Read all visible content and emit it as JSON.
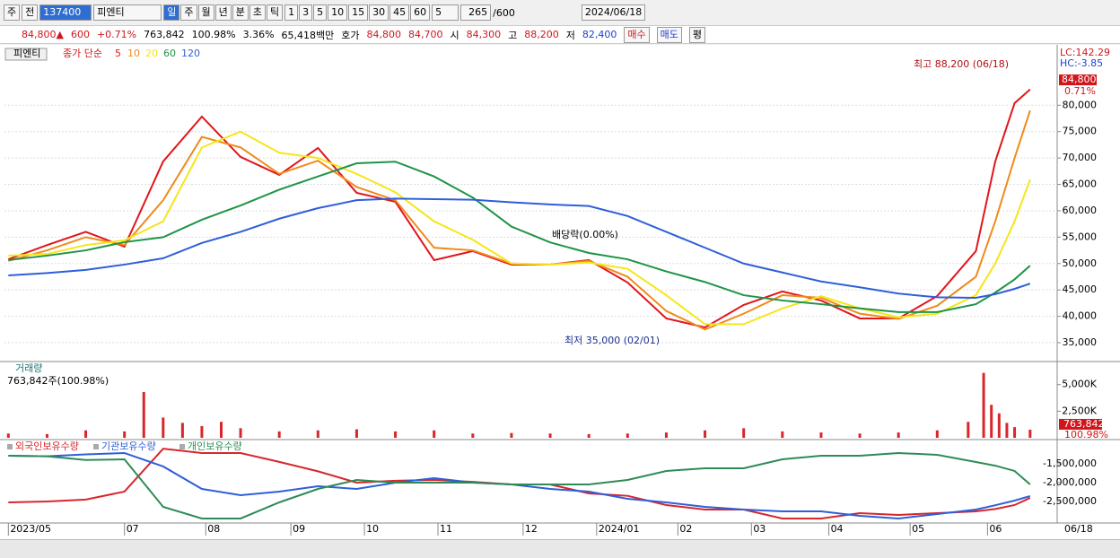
{
  "toolbar": {
    "market": "주",
    "prev": "전",
    "code": "137400",
    "name": "피엔티",
    "periods": [
      "일",
      "주",
      "월",
      "년",
      "분",
      "초",
      "틱"
    ],
    "intervals": [
      "1",
      "3",
      "5",
      "10",
      "15",
      "30",
      "45",
      "60"
    ],
    "interval_select": "5",
    "count": "265",
    "count_max": "/600",
    "date": "2024/06/18"
  },
  "quote": {
    "price": "84,800",
    "arrow": "▲",
    "change": "600",
    "change_pct": "+0.71%",
    "volume": "763,842",
    "volume_ratio": "100.98%",
    "turnover": "3.36%",
    "amount": "65,418백만",
    "ask_label": "호가",
    "ask": "84,800",
    "bid": "84,700",
    "open_label": "시",
    "open": "84,300",
    "high_label": "고",
    "high": "88,200",
    "low_label": "저",
    "low": "82,400",
    "buy": "매수",
    "sell": "매도",
    "eval": "평"
  },
  "chart_data": [
    {
      "type": "line",
      "legend_name": "피엔티",
      "legend_label": "종가 단순",
      "x": [
        0,
        10,
        20,
        30,
        40,
        50,
        60,
        70,
        80,
        90,
        100,
        110,
        120,
        130,
        140,
        150,
        160,
        170,
        180,
        190,
        200,
        210,
        220,
        230,
        240,
        250,
        255,
        260,
        264
      ],
      "series": [
        {
          "name": "5",
          "color": "#e0161c",
          "values": [
            50800,
            53500,
            56000,
            53200,
            69350,
            77850,
            70200,
            66800,
            71900,
            63400,
            61700,
            50650,
            52350,
            49800,
            49800,
            50650,
            46400,
            39600,
            37900,
            42150,
            44700,
            43000,
            39600,
            39600,
            43850,
            52350,
            69350,
            80400,
            83000
          ]
        },
        {
          "name": "10",
          "color": "#f08a1c",
          "values": [
            50500,
            52500,
            55000,
            53500,
            62000,
            74000,
            72000,
            67000,
            69500,
            64500,
            62000,
            53000,
            52500,
            50000,
            49800,
            50500,
            47500,
            41000,
            37500,
            40500,
            44000,
            43500,
            40500,
            39500,
            42000,
            47500,
            58000,
            70000,
            79000
          ]
        },
        {
          "name": "20",
          "color": "#f5e61a",
          "values": [
            51500,
            51800,
            53500,
            54400,
            58000,
            72000,
            75000,
            71000,
            70000,
            67000,
            63500,
            58000,
            54500,
            50000,
            49800,
            50200,
            49000,
            44000,
            38500,
            38500,
            41500,
            43800,
            41500,
            39800,
            40500,
            44000,
            50000,
            58000,
            65900
          ]
        },
        {
          "name": "60",
          "color": "#1e9446",
          "values": [
            50650,
            51500,
            52500,
            54050,
            55000,
            58300,
            61000,
            64000,
            66500,
            69000,
            69300,
            66500,
            62500,
            57000,
            54000,
            52000,
            50800,
            48500,
            46500,
            44000,
            43000,
            42300,
            41500,
            40800,
            40800,
            42300,
            44500,
            47000,
            49600
          ]
        },
        {
          "name": "120",
          "color": "#2f5fd8",
          "values": [
            47750,
            48200,
            48800,
            49800,
            51000,
            53900,
            56000,
            58500,
            60500,
            62000,
            62300,
            62200,
            62100,
            61600,
            61200,
            60900,
            59000,
            56000,
            53000,
            50000,
            48300,
            46600,
            45500,
            44300,
            43600,
            43500,
            44200,
            45200,
            46200
          ]
        }
      ],
      "xlim": [
        -1,
        271
      ],
      "ylim": [
        31600,
        91100
      ],
      "yticks": [
        {
          "value": 35000,
          "label": "35,000"
        },
        {
          "value": 40000,
          "label": "40,000"
        },
        {
          "value": 45000,
          "label": "45,000"
        },
        {
          "value": 50000,
          "label": "50,000"
        },
        {
          "value": 55000,
          "label": "55,000"
        },
        {
          "value": 60000,
          "label": "60,000"
        },
        {
          "value": 65000,
          "label": "65,000"
        },
        {
          "value": 70000,
          "label": "70,000"
        },
        {
          "value": 75000,
          "label": "75,000"
        },
        {
          "value": 80000,
          "label": "80,000"
        }
      ],
      "xticks": [
        {
          "value": 0,
          "label": "2023/05"
        },
        {
          "value": 30,
          "label": "07"
        },
        {
          "value": 51,
          "label": "08"
        },
        {
          "value": 73,
          "label": "09"
        },
        {
          "value": 92,
          "label": "10"
        },
        {
          "value": 111,
          "label": "11"
        },
        {
          "value": 133,
          "label": "12"
        },
        {
          "value": 152,
          "label": "2024/01"
        },
        {
          "value": 173,
          "label": "02"
        },
        {
          "value": 192,
          "label": "03"
        },
        {
          "value": 212,
          "label": "04"
        },
        {
          "value": 233,
          "label": "05"
        },
        {
          "value": 253,
          "label": "06"
        }
      ],
      "grid": true,
      "annotations": [
        "LC:142.29",
        "HC:-3.85",
        "최고 88,200 (06/18)",
        "최저 35,000 (02/01)",
        "배당락(0.00%)"
      ],
      "last_price": {
        "value": 84800,
        "label": "84,800"
      },
      "last_change": "0.71%",
      "end_label": "06/18"
    },
    {
      "type": "bar",
      "title": "거래량",
      "subtitle": "763,842주(100.98%)",
      "x": [
        0,
        10,
        20,
        30,
        35,
        40,
        45,
        50,
        55,
        60,
        70,
        80,
        90,
        100,
        110,
        120,
        130,
        140,
        150,
        160,
        170,
        180,
        190,
        200,
        210,
        220,
        230,
        240,
        248,
        252,
        254,
        256,
        258,
        260,
        264
      ],
      "values": [
        400,
        350,
        700,
        600,
        4300,
        1900,
        1400,
        1100,
        1500,
        900,
        600,
        700,
        800,
        600,
        700,
        400,
        450,
        400,
        350,
        400,
        500,
        700,
        900,
        600,
        500,
        400,
        500,
        700,
        1500,
        6100,
        3100,
        2300,
        1400,
        1000,
        763.842
      ],
      "color": "#d8262b",
      "xlim": [
        -1,
        271
      ],
      "ylim": [
        0,
        7000
      ],
      "yticks": [
        {
          "value": 2500,
          "label": "2,500K"
        },
        {
          "value": 5000,
          "label": "5,000K"
        }
      ],
      "last_value": {
        "value": 763.842,
        "label": "763,842"
      },
      "last_change": "100.98%"
    },
    {
      "type": "line",
      "x": [
        0,
        10,
        20,
        30,
        40,
        50,
        60,
        70,
        80,
        90,
        100,
        110,
        120,
        130,
        140,
        150,
        160,
        170,
        180,
        190,
        200,
        210,
        220,
        230,
        240,
        250,
        255,
        260,
        264
      ],
      "series": [
        {
          "name": "외국인보유수량",
          "color": "#d8262b",
          "values": [
            -2524000,
            -2500000,
            -2450000,
            -2238000,
            -1100000,
            -1214000,
            -1214000,
            -1450000,
            -1700000,
            -2000000,
            -1950000,
            -1929000,
            -1980000,
            -2048000,
            -2048000,
            -2286000,
            -2350000,
            -2595000,
            -2714000,
            -2714000,
            -2952000,
            -2952000,
            -2810000,
            -2857000,
            -2810000,
            -2762000,
            -2700000,
            -2595000,
            -2405000
          ]
        },
        {
          "name": "기관보유수량",
          "color": "#2f5fd8",
          "values": [
            -1286000,
            -1300000,
            -1250000,
            -1214000,
            -1571000,
            -2167000,
            -2333000,
            -2238000,
            -2095000,
            -2167000,
            -2000000,
            -1881000,
            -2000000,
            -2048000,
            -2167000,
            -2238000,
            -2429000,
            -2524000,
            -2643000,
            -2714000,
            -2762000,
            -2762000,
            -2881000,
            -2952000,
            -2833000,
            -2714000,
            -2600000,
            -2476000,
            -2357000
          ]
        },
        {
          "name": "개인보유수량",
          "color": "#2e8b57",
          "values": [
            -1286000,
            -1300000,
            -1400000,
            -1381000,
            -2643000,
            -2952000,
            -2952000,
            -2524000,
            -2167000,
            -1929000,
            -2000000,
            -2000000,
            -2000000,
            -2048000,
            -2048000,
            -2048000,
            -1929000,
            -1690000,
            -1619000,
            -1619000,
            -1381000,
            -1286000,
            -1286000,
            -1214000,
            -1262000,
            -1452000,
            -1550000,
            -1690000,
            -2048000
          ]
        }
      ],
      "xlim": [
        -1,
        271
      ],
      "ylim": [
        -3048000,
        -905000
      ],
      "yticks": [
        {
          "value": -1500000,
          "label": "-1,500,000"
        },
        {
          "value": -2000000,
          "label": "-2,000,000"
        },
        {
          "value": -2500000,
          "label": "-2,500,000"
        }
      ]
    }
  ]
}
